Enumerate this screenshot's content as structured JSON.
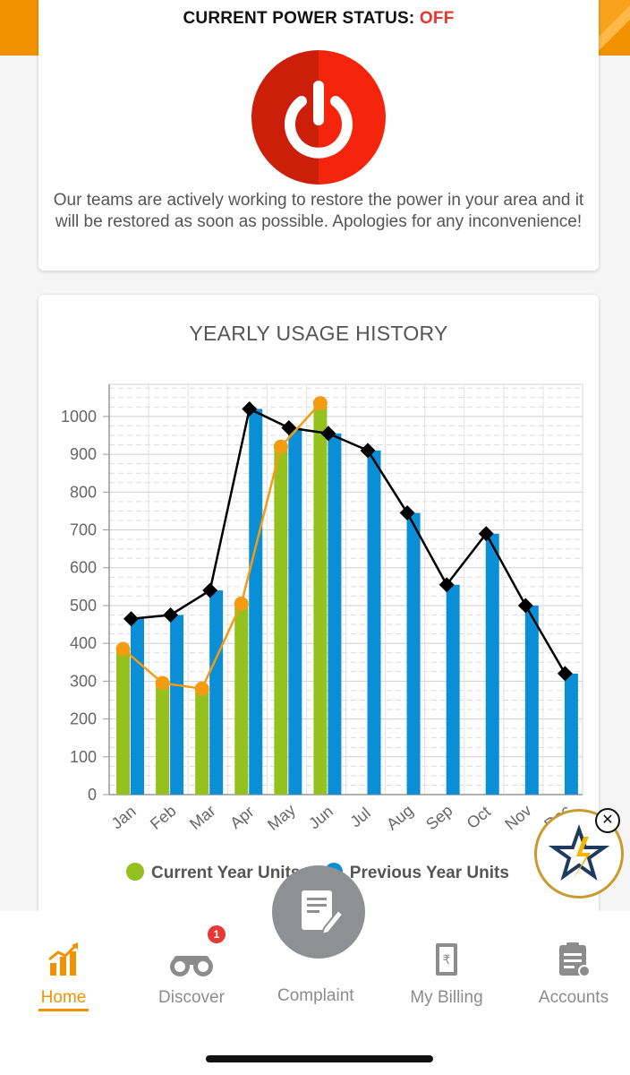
{
  "status": {
    "title_prefix": "CURRENT POWER STATUS: ",
    "title_value": "OFF",
    "message": "Our teams are actively working to restore the power in your area and it will be restored as soon as possible. Apologies for any inconvenience!",
    "icon": "power-icon"
  },
  "chart_data": {
    "type": "bar",
    "title": "YEARLY USAGE HISTORY",
    "categories": [
      "Jan",
      "Feb",
      "Mar",
      "Apr",
      "May",
      "Jun",
      "Jul",
      "Aug",
      "Sep",
      "Oct",
      "Nov",
      "Dec"
    ],
    "ylim": [
      0,
      1000
    ],
    "yticks": [
      0,
      100,
      200,
      300,
      400,
      500,
      600,
      700,
      800,
      900,
      1000
    ],
    "grid": true,
    "legend_position": "bottom",
    "series": [
      {
        "name": "Current Year Units",
        "color": "#95c11f",
        "line_color": "#f39c12",
        "values": [
          385,
          295,
          280,
          505,
          920,
          1035,
          null,
          null,
          null,
          null,
          null,
          null
        ]
      },
      {
        "name": "Previous Year Units",
        "color": "#0a8fd6",
        "line_color": "#000000",
        "values": [
          465,
          475,
          540,
          1020,
          970,
          955,
          910,
          745,
          555,
          690,
          500,
          320
        ]
      }
    ]
  },
  "nav": {
    "items": [
      {
        "label": "Home",
        "icon": "bar-chart-icon"
      },
      {
        "label": "Discover",
        "icon": "binoculars-icon"
      },
      {
        "label": "Complaint",
        "icon": "complaint-icon"
      },
      {
        "label": "My Billing",
        "icon": "bill-icon"
      },
      {
        "label": "Accounts",
        "icon": "clipboard-icon"
      }
    ],
    "discover_badge": "1"
  },
  "colors": {
    "accent": "#f39200",
    "off": "#e8342a",
    "power_button": "#e8250d"
  }
}
